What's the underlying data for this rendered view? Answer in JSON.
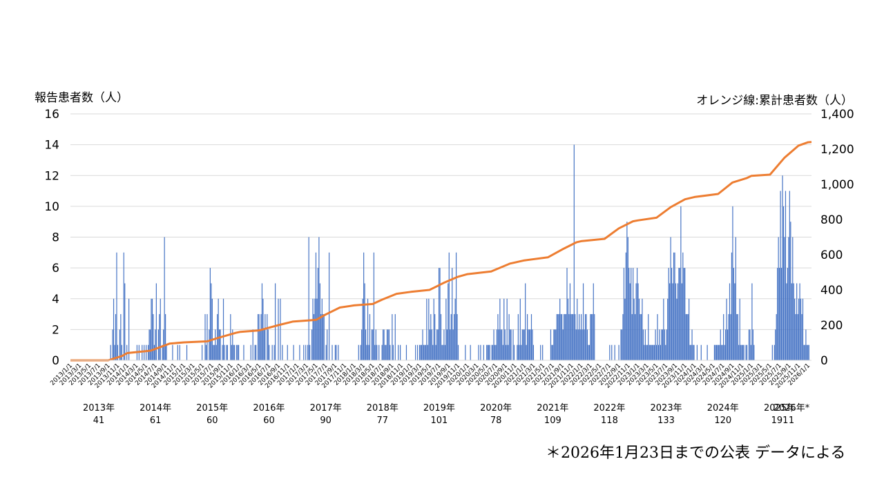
{
  "chart_data": {
    "type": "bar",
    "ylabel": "報告患者数（人）",
    "y2label": "オレンジ線:累計患者数（人）",
    "ylim": [
      0,
      16
    ],
    "y2lim": [
      0,
      1400
    ],
    "yticks": [
      "0",
      "2",
      "4",
      "6",
      "8",
      "10",
      "12",
      "14",
      "16"
    ],
    "y2ticks": [
      "0",
      "200",
      "400",
      "600",
      "800",
      "1,000",
      "1,200",
      "1,400"
    ],
    "bar_color": "#4472c4",
    "line_color": "#ed7d31",
    "grid": true,
    "tick_dates": [
      "2013/1/1",
      "2013/3/1",
      "2013/5/1",
      "2013/7/1",
      "2013/9/1",
      "2013/11/1",
      "2014/1/1",
      "2014/3/1",
      "2014/5/1",
      "2014/7/1",
      "2014/9/1",
      "2014/11/1",
      "2015/1/1",
      "2015/3/1",
      "2015/5/1",
      "2015/7/1",
      "2015/9/1",
      "2015/11/1",
      "2016/1/1",
      "2016/3/1",
      "2016/5/1",
      "2016/7/1",
      "2016/9/1",
      "2016/11/1",
      "2017/1/1",
      "2017/3/1",
      "2017/5/1",
      "2017/7/1",
      "2017/9/1",
      "2017/11/1",
      "2018/1/1",
      "2018/3/1",
      "2018/5/1",
      "2018/7/1",
      "2018/9/1",
      "2018/11/1",
      "2019/1/1",
      "2019/3/1",
      "2019/5/1",
      "2019/7/1",
      "2019/9/1",
      "2019/11/1",
      "2020/1/1",
      "2020/3/1",
      "2020/5/1",
      "2020/7/1",
      "2020/9/1",
      "2020/11/1",
      "2021/1/1",
      "2021/3/1",
      "2021/5/1",
      "2021/7/1",
      "2021/9/1",
      "2021/11/1",
      "2022/1/1",
      "2022/3/1",
      "2022/5/1",
      "2022/7/1",
      "2022/9/1",
      "2022/11/1",
      "2023/1/1",
      "2023/3/1",
      "2023/5/1",
      "2023/7/1",
      "2023/9/1",
      "2023/11/1",
      "2024/1/1",
      "2024/3/1",
      "2024/5/1",
      "2024/7/1",
      "2024/9/1",
      "2024/11/1",
      "2025/1/1",
      "2025/3/1",
      "2025/5/1",
      "2025/7/1",
      "2025/9/1",
      "2025/11/1",
      "2026/1/1"
    ],
    "yearly_totals": [
      {
        "year": "2013年",
        "count": "41"
      },
      {
        "year": "2014年",
        "count": "61"
      },
      {
        "year": "2015年",
        "count": "60"
      },
      {
        "year": "2016年",
        "count": "60"
      },
      {
        "year": "2017年",
        "count": "90"
      },
      {
        "year": "2018年",
        "count": "77"
      },
      {
        "year": "2019年",
        "count": "101"
      },
      {
        "year": "2020年",
        "count": "78"
      },
      {
        "year": "2021年",
        "count": "109"
      },
      {
        "year": "2022年",
        "count": "118"
      },
      {
        "year": "2023年",
        "count": "133"
      },
      {
        "year": "2024年",
        "count": "120"
      },
      {
        "year": "2025年",
        "count": "191"
      },
      {
        "year": "2026年*",
        "count": "1"
      }
    ],
    "weekly_reports": [
      0,
      0,
      0,
      0,
      0,
      0,
      0,
      0,
      0,
      0,
      0,
      0,
      0,
      0,
      0,
      0,
      0,
      0,
      0,
      0,
      0,
      0,
      0,
      0,
      0,
      0,
      0,
      0,
      0,
      0,
      0,
      0,
      0,
      0,
      0,
      0,
      0,
      0,
      0,
      1,
      0,
      2,
      4,
      1,
      3,
      7,
      1,
      0,
      2,
      3,
      1,
      0,
      7,
      5,
      0,
      1,
      0,
      4,
      0,
      0,
      0,
      0,
      0,
      0,
      0,
      1,
      0,
      1,
      0,
      0,
      1,
      0,
      1,
      0,
      1,
      0,
      1,
      2,
      2,
      4,
      4,
      3,
      1,
      2,
      5,
      0,
      2,
      3,
      4,
      0,
      1,
      2,
      8,
      3,
      1,
      0,
      0,
      0,
      0,
      0,
      1,
      0,
      0,
      0,
      0,
      1,
      0,
      1,
      0,
      0,
      0,
      0,
      0,
      0,
      1,
      0,
      0,
      0,
      0,
      0,
      0,
      0,
      0,
      0,
      0,
      0,
      0,
      0,
      0,
      1,
      0,
      0,
      3,
      1,
      3,
      0,
      2,
      6,
      5,
      4,
      1,
      1,
      2,
      1,
      3,
      4,
      2,
      2,
      0,
      1,
      4,
      1,
      0,
      1,
      1,
      0,
      0,
      3,
      1,
      2,
      1,
      1,
      0,
      1,
      1,
      1,
      0,
      0,
      0,
      0,
      1,
      0,
      0,
      0,
      0,
      0,
      0,
      1,
      0,
      2,
      0,
      1,
      1,
      0,
      3,
      3,
      2,
      3,
      5,
      4,
      2,
      3,
      0,
      3,
      2,
      1,
      0,
      0,
      1,
      0,
      1,
      5,
      0,
      0,
      4,
      0,
      4,
      0,
      1,
      0,
      0,
      0,
      0,
      1,
      0,
      0,
      0,
      0,
      0,
      1,
      0,
      0,
      0,
      0,
      0,
      1,
      0,
      0,
      0,
      1,
      0,
      1,
      0,
      1,
      8,
      1,
      0,
      2,
      4,
      3,
      4,
      7,
      4,
      6,
      8,
      5,
      3,
      4,
      3,
      3,
      0,
      1,
      2,
      0,
      7,
      0,
      0,
      1,
      0,
      0,
      1,
      1,
      0,
      1,
      0,
      0,
      0,
      0,
      0,
      0,
      0,
      0,
      0,
      0,
      0,
      0,
      0,
      0,
      0,
      0,
      0,
      0,
      0,
      1,
      0,
      1,
      2,
      4,
      7,
      5,
      2,
      1,
      4,
      1,
      3,
      0,
      2,
      2,
      7,
      1,
      2,
      1,
      0,
      1,
      0,
      0,
      1,
      2,
      2,
      1,
      1,
      2,
      2,
      2,
      1,
      0,
      3,
      1,
      0,
      3,
      0,
      0,
      1,
      0,
      1,
      0,
      0,
      0,
      0,
      0,
      1,
      0,
      0,
      0,
      0,
      0,
      0,
      0,
      0,
      1,
      0,
      1,
      0,
      1,
      1,
      1,
      2,
      1,
      1,
      1,
      4,
      1,
      4,
      2,
      3,
      2,
      1,
      4,
      3,
      1,
      2,
      2,
      6,
      6,
      3,
      1,
      1,
      2,
      1,
      4,
      2,
      5,
      7,
      2,
      3,
      6,
      2,
      3,
      4,
      7,
      3,
      1,
      0,
      0,
      0,
      0,
      0,
      0,
      1,
      0,
      0,
      0,
      0,
      1,
      0,
      0,
      0,
      0,
      0,
      0,
      0,
      1,
      0,
      1,
      0,
      0,
      1,
      0,
      0,
      1,
      1,
      1,
      1,
      0,
      1,
      1,
      2,
      1,
      1,
      2,
      3,
      2,
      4,
      2,
      2,
      1,
      4,
      2,
      1,
      4,
      1,
      3,
      2,
      2,
      0,
      2,
      1,
      0,
      0,
      1,
      3,
      1,
      4,
      1,
      2,
      2,
      2,
      5,
      1,
      3,
      2,
      2,
      2,
      3,
      2,
      1,
      0,
      0,
      0,
      0,
      0,
      0,
      1,
      0,
      1,
      0,
      0,
      0,
      0,
      0,
      0,
      0,
      2,
      1,
      1,
      2,
      2,
      2,
      3,
      3,
      3,
      4,
      3,
      3,
      2,
      3,
      3,
      3,
      6,
      4,
      3,
      5,
      3,
      3,
      3,
      14,
      3,
      2,
      4,
      2,
      3,
      2,
      3,
      2,
      5,
      2,
      3,
      3,
      2,
      1,
      1,
      3,
      3,
      3,
      5,
      3,
      0,
      0,
      0,
      0,
      0,
      0,
      0,
      0,
      0,
      0,
      0,
      0,
      0,
      0,
      1,
      0,
      1,
      0,
      0,
      1,
      0,
      0,
      0,
      1,
      0,
      2,
      2,
      3,
      6,
      4,
      7,
      9,
      8,
      6,
      5,
      6,
      3,
      6,
      4,
      3,
      5,
      6,
      5,
      4,
      3,
      3,
      4,
      2,
      1,
      2,
      1,
      1,
      3,
      1,
      1,
      1,
      1,
      1,
      1,
      2,
      1,
      3,
      1,
      2,
      1,
      2,
      2,
      4,
      2,
      1,
      2,
      4,
      6,
      5,
      8,
      6,
      5,
      7,
      7,
      5,
      4,
      5,
      6,
      6,
      10,
      5,
      7,
      6,
      6,
      3,
      3,
      3,
      4,
      1,
      1,
      2,
      1,
      1,
      0,
      0,
      1,
      0,
      0,
      0,
      1,
      0,
      0,
      0,
      0,
      0,
      1,
      0,
      0,
      0,
      0,
      0,
      0,
      1,
      1,
      1,
      1,
      1,
      1,
      2,
      1,
      1,
      3,
      1,
      2,
      4,
      2,
      3,
      5,
      3,
      7,
      10,
      6,
      5,
      8,
      3,
      3,
      1,
      4,
      1,
      1,
      1,
      1,
      0,
      1,
      1,
      0,
      2,
      2,
      1,
      5,
      2,
      1,
      0,
      0,
      0,
      0,
      0,
      0,
      0,
      0,
      0,
      0,
      0,
      0,
      0,
      0,
      0,
      0,
      0,
      1,
      0,
      1,
      2,
      3,
      6,
      8,
      6,
      11,
      6,
      12,
      10,
      8,
      11,
      5,
      6,
      8,
      11,
      9,
      5,
      8,
      5,
      4,
      3,
      5,
      3,
      4,
      5,
      4,
      3,
      4,
      1,
      1,
      2,
      1,
      1,
      1,
      0,
      0
    ],
    "cumulative_points": [
      {
        "date": "2013/1/1",
        "value": 0
      },
      {
        "date": "2013/9/1",
        "value": 0
      },
      {
        "date": "2013/12/1",
        "value": 25
      },
      {
        "date": "2014/1/1",
        "value": 41
      },
      {
        "date": "2014/6/1",
        "value": 55
      },
      {
        "date": "2014/10/1",
        "value": 95
      },
      {
        "date": "2015/1/1",
        "value": 102
      },
      {
        "date": "2015/6/1",
        "value": 108
      },
      {
        "date": "2015/8/1",
        "value": 125
      },
      {
        "date": "2015/12/1",
        "value": 156
      },
      {
        "date": "2016/1/1",
        "value": 162
      },
      {
        "date": "2016/5/1",
        "value": 170
      },
      {
        "date": "2016/9/1",
        "value": 200
      },
      {
        "date": "2016/12/1",
        "value": 220
      },
      {
        "date": "2017/1/1",
        "value": 222
      },
      {
        "date": "2017/5/1",
        "value": 230
      },
      {
        "date": "2017/7/1",
        "value": 260
      },
      {
        "date": "2017/10/1",
        "value": 300
      },
      {
        "date": "2018/1/1",
        "value": 312
      },
      {
        "date": "2018/5/1",
        "value": 320
      },
      {
        "date": "2018/7/1",
        "value": 345
      },
      {
        "date": "2018/10/1",
        "value": 378
      },
      {
        "date": "2019/1/1",
        "value": 389
      },
      {
        "date": "2019/5/1",
        "value": 400
      },
      {
        "date": "2019/8/1",
        "value": 440
      },
      {
        "date": "2019/11/1",
        "value": 475
      },
      {
        "date": "2020/1/1",
        "value": 490
      },
      {
        "date": "2020/6/1",
        "value": 505
      },
      {
        "date": "2020/10/1",
        "value": 550
      },
      {
        "date": "2021/1/1",
        "value": 568
      },
      {
        "date": "2021/6/1",
        "value": 585
      },
      {
        "date": "2021/9/1",
        "value": 630
      },
      {
        "date": "2021/12/1",
        "value": 670
      },
      {
        "date": "2022/1/1",
        "value": 677
      },
      {
        "date": "2022/6/1",
        "value": 690
      },
      {
        "date": "2022/9/1",
        "value": 750
      },
      {
        "date": "2022/12/1",
        "value": 790
      },
      {
        "date": "2023/1/1",
        "value": 795
      },
      {
        "date": "2023/5/1",
        "value": 810
      },
      {
        "date": "2023/8/1",
        "value": 870
      },
      {
        "date": "2023/11/1",
        "value": 915
      },
      {
        "date": "2024/1/1",
        "value": 928
      },
      {
        "date": "2024/6/1",
        "value": 945
      },
      {
        "date": "2024/9/1",
        "value": 1010
      },
      {
        "date": "2024/12/1",
        "value": 1035
      },
      {
        "date": "2025/1/1",
        "value": 1048
      },
      {
        "date": "2025/5/1",
        "value": 1055
      },
      {
        "date": "2025/8/1",
        "value": 1150
      },
      {
        "date": "2025/11/1",
        "value": 1220
      },
      {
        "date": "2026/1/1",
        "value": 1239
      },
      {
        "date": "2026/1/23",
        "value": 1240
      }
    ]
  },
  "footnote": "＊2026年1月23日までの公表 データによる"
}
